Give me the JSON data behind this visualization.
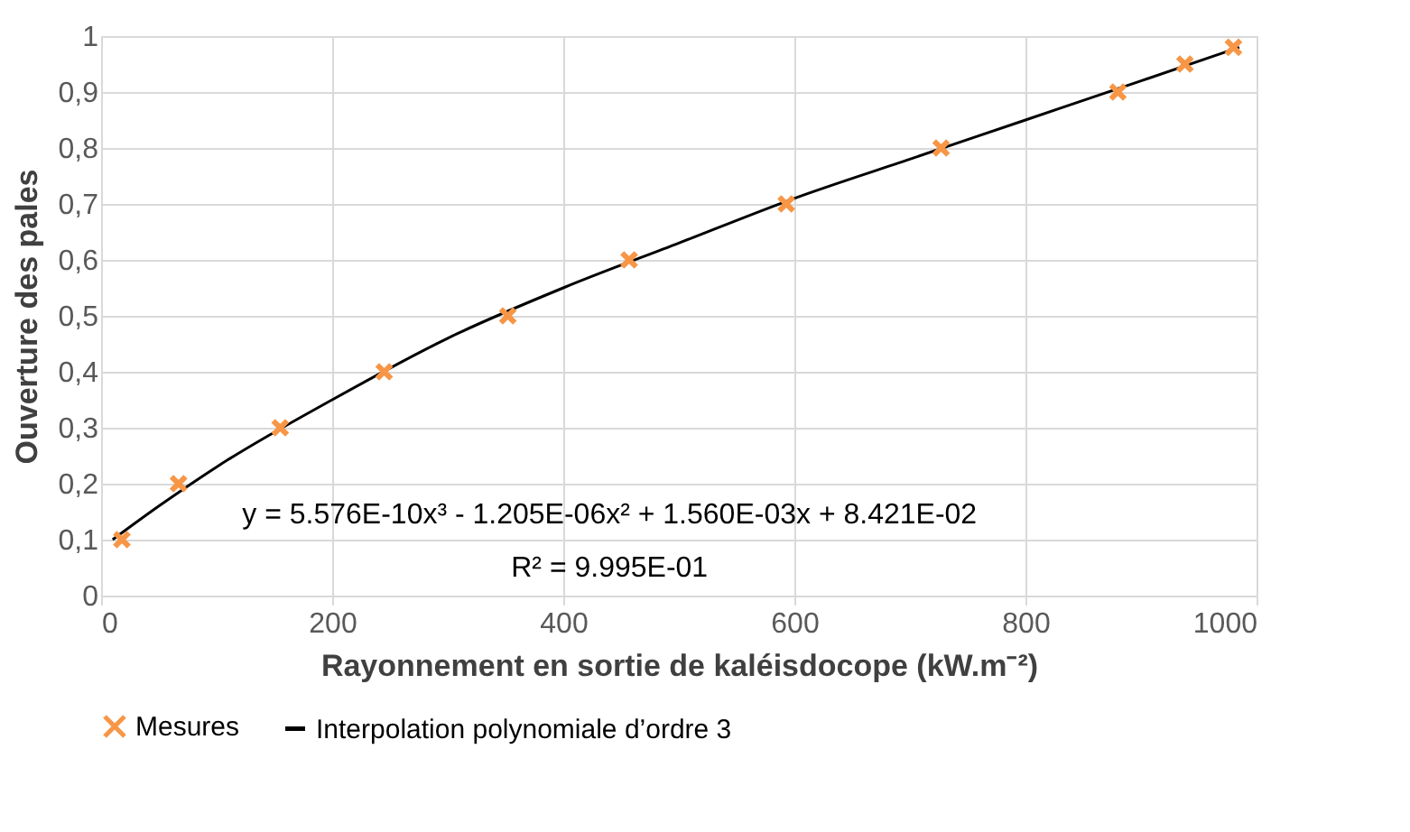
{
  "chart_data": {
    "type": "scatter",
    "xlabel": "Rayonnement en sortie de kaléisdocope (kW.m⁻²)",
    "ylabel": "Ouverture des pales",
    "series": [
      {
        "name": "Mesures",
        "color": "#f79646",
        "marker": "cross",
        "x": [
          18,
          67,
          155,
          245,
          352,
          457,
          593,
          727,
          880,
          938,
          980
        ],
        "values": [
          0.1,
          0.2,
          0.3,
          0.4,
          0.5,
          0.6,
          0.7,
          0.8,
          0.9,
          0.95,
          0.98
        ]
      },
      {
        "name": "Interpolation polynomiale d’ordre 3",
        "type": "line",
        "color": "#000000",
        "line_style": "solid",
        "marker": "none",
        "x": [
          10,
          50,
          100,
          200,
          300,
          400,
          500,
          600,
          700,
          800,
          900,
          985
        ],
        "values": [
          0.1,
          0.16,
          0.23,
          0.35,
          0.46,
          0.55,
          0.63,
          0.71,
          0.78,
          0.85,
          0.92,
          0.98
        ]
      }
    ],
    "annotations": [
      "y = 5.576E-10x³ - 1.205E-06x² + 1.560E-03x + 8.421E-02",
      "R² = 9.995E-01"
    ],
    "xlim": [
      0,
      1000
    ],
    "xticks": [
      0,
      200,
      400,
      600,
      800,
      1000
    ],
    "ylim": [
      0,
      1
    ],
    "yticks": [
      0,
      {
        "value": 0.1,
        "label": "0,1"
      },
      {
        "value": 0.2,
        "label": "0,2"
      },
      {
        "value": 0.3,
        "label": "0,3"
      },
      {
        "value": 0.4,
        "label": "0,4"
      },
      {
        "value": 0.5,
        "label": "0,5"
      },
      {
        "value": 0.6,
        "label": "0,6"
      },
      {
        "value": 0.7,
        "label": "0,7"
      },
      {
        "value": 0.8,
        "label": "0,8"
      },
      {
        "value": 0.9,
        "label": "0,9"
      },
      1
    ],
    "grid": true,
    "legend": "bottom"
  }
}
